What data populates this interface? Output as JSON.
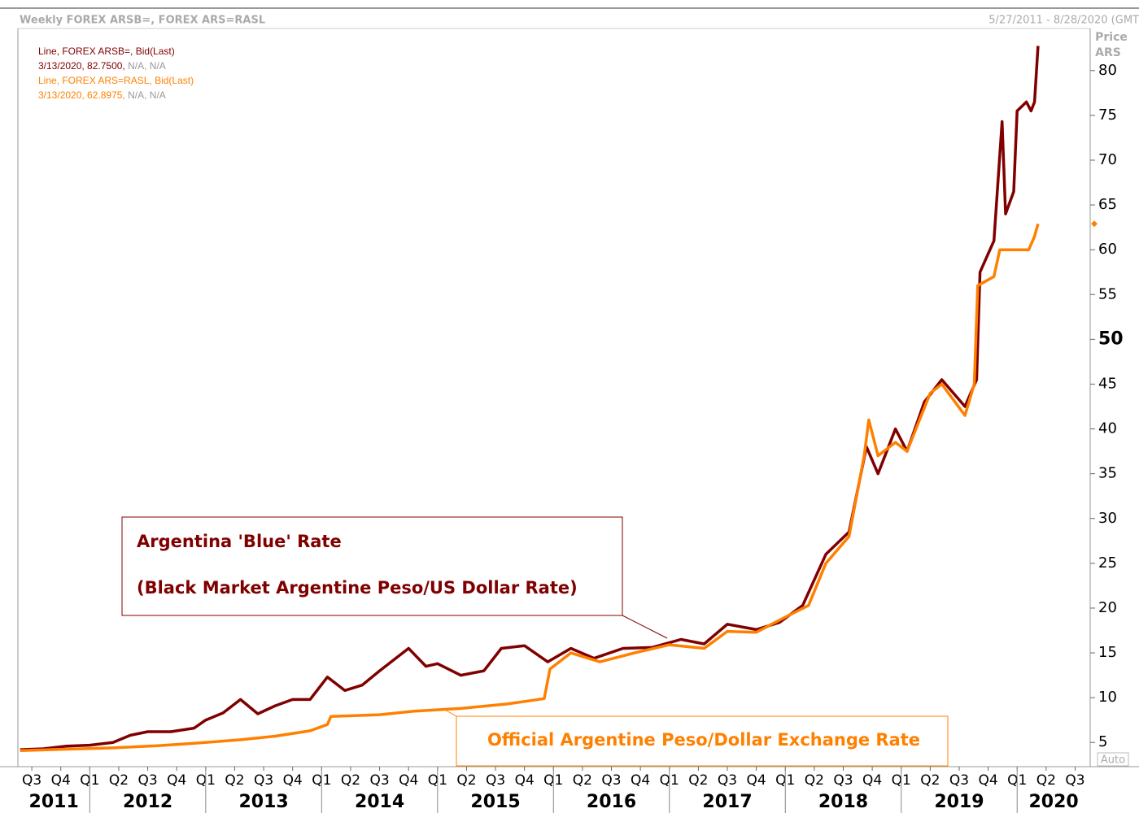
{
  "chart_data": {
    "type": "line",
    "header_left": "Weekly FOREX ARSB=, FOREX ARS=RASL",
    "header_right": "5/27/2011 - 8/28/2020 (GMT",
    "y_axis_label": [
      "Price",
      "ARS"
    ],
    "auto_button": "Auto",
    "annotations": [
      {
        "lines": [
          "Argentina 'Blue' Rate",
          "(Black Market Argentine Peso/US Dollar Rate)"
        ],
        "color": "#800000"
      },
      {
        "lines": [
          "Official Argentine Peso/Dollar Exchange Rate"
        ],
        "color": "#ff8000"
      }
    ],
    "series": [
      {
        "name": "Line, FOREX ARSB=, Bid(Last)",
        "legend_value": "3/13/2020, 82.7500,",
        "legend_na": "N/A, N/A",
        "color": "#800000",
        "x": [
          2011.4,
          2011.6,
          2011.8,
          2012.0,
          2012.2,
          2012.35,
          2012.5,
          2012.7,
          2012.9,
          2013.0,
          2013.15,
          2013.3,
          2013.45,
          2013.6,
          2013.75,
          2013.9,
          2014.05,
          2014.2,
          2014.35,
          2014.5,
          2014.75,
          2014.9,
          2015.0,
          2015.2,
          2015.4,
          2015.55,
          2015.75,
          2015.95,
          2016.15,
          2016.35,
          2016.6,
          2016.85,
          2017.1,
          2017.3,
          2017.5,
          2017.75,
          2017.95,
          2018.15,
          2018.35,
          2018.55,
          2018.7,
          2018.8,
          2018.95,
          2019.05,
          2019.2,
          2019.35,
          2019.55,
          2019.65,
          2019.68,
          2019.8,
          2019.87,
          2019.9,
          2019.97,
          2020.0,
          2020.08,
          2020.12,
          2020.15,
          2020.18
        ],
        "values": [
          4.2,
          4.3,
          4.6,
          4.7,
          5.0,
          5.8,
          6.2,
          6.2,
          6.6,
          7.5,
          8.3,
          9.8,
          8.2,
          9.1,
          9.8,
          9.8,
          12.3,
          10.8,
          11.4,
          13.0,
          15.5,
          13.5,
          13.8,
          12.5,
          13.0,
          15.5,
          15.8,
          14.0,
          15.5,
          14.4,
          15.5,
          15.6,
          16.5,
          16.0,
          18.2,
          17.6,
          18.4,
          20.3,
          26.0,
          28.5,
          38.0,
          35.0,
          40.0,
          37.5,
          43.0,
          45.5,
          42.5,
          45.5,
          57.5,
          61.0,
          74.3,
          64.0,
          66.5,
          75.5,
          76.5,
          75.5,
          76.5,
          82.75
        ]
      },
      {
        "name": "Line, FOREX ARS=RASL, Bid(Last)",
        "legend_value": "3/13/2020, 62.8975,",
        "legend_na": "N/A, N/A",
        "color": "#ff8000",
        "x": [
          2011.4,
          2011.8,
          2012.2,
          2012.6,
          2012.9,
          2013.3,
          2013.6,
          2013.9,
          2014.05,
          2014.08,
          2014.5,
          2014.8,
          2015.2,
          2015.6,
          2015.92,
          2015.97,
          2016.15,
          2016.4,
          2016.7,
          2017.0,
          2017.3,
          2017.5,
          2017.75,
          2018.0,
          2018.2,
          2018.35,
          2018.55,
          2018.68,
          2018.72,
          2018.8,
          2018.95,
          2019.05,
          2019.25,
          2019.35,
          2019.55,
          2019.63,
          2019.66,
          2019.8,
          2019.85,
          2019.95,
          2020.1,
          2020.15,
          2020.18
        ],
        "values": [
          4.1,
          4.25,
          4.4,
          4.65,
          4.9,
          5.3,
          5.7,
          6.3,
          7.0,
          7.9,
          8.1,
          8.5,
          8.8,
          9.3,
          9.9,
          13.2,
          15.0,
          14.0,
          15.0,
          15.9,
          15.5,
          17.4,
          17.3,
          19.0,
          20.3,
          25.0,
          28.0,
          37.0,
          41.0,
          37.0,
          38.5,
          37.5,
          44.0,
          45.0,
          41.5,
          45.0,
          56.0,
          57.0,
          60.0,
          60.0,
          60.0,
          61.5,
          62.8975
        ]
      }
    ],
    "xlim": [
      2011.38,
      2020.63
    ],
    "xticks": [
      {
        "value": 2011.5,
        "label": "Q3"
      },
      {
        "value": 2011.75,
        "label": "Q4"
      },
      {
        "value": 2012.0,
        "label": "Q1"
      },
      {
        "value": 2012.25,
        "label": "Q2"
      },
      {
        "value": 2012.5,
        "label": "Q3"
      },
      {
        "value": 2012.75,
        "label": "Q4"
      },
      {
        "value": 2013.0,
        "label": "Q1"
      },
      {
        "value": 2013.25,
        "label": "Q2"
      },
      {
        "value": 2013.5,
        "label": "Q3"
      },
      {
        "value": 2013.75,
        "label": "Q4"
      },
      {
        "value": 2014.0,
        "label": "Q1"
      },
      {
        "value": 2014.25,
        "label": "Q2"
      },
      {
        "value": 2014.5,
        "label": "Q3"
      },
      {
        "value": 2014.75,
        "label": "Q4"
      },
      {
        "value": 2015.0,
        "label": "Q1"
      },
      {
        "value": 2015.25,
        "label": "Q2"
      },
      {
        "value": 2015.5,
        "label": "Q3"
      },
      {
        "value": 2015.75,
        "label": "Q4"
      },
      {
        "value": 2016.0,
        "label": "Q1"
      },
      {
        "value": 2016.25,
        "label": "Q2"
      },
      {
        "value": 2016.5,
        "label": "Q3"
      },
      {
        "value": 2016.75,
        "label": "Q4"
      },
      {
        "value": 2017.0,
        "label": "Q1"
      },
      {
        "value": 2017.25,
        "label": "Q2"
      },
      {
        "value": 2017.5,
        "label": "Q3"
      },
      {
        "value": 2017.75,
        "label": "Q4"
      },
      {
        "value": 2018.0,
        "label": "Q1"
      },
      {
        "value": 2018.25,
        "label": "Q2"
      },
      {
        "value": 2018.5,
        "label": "Q3"
      },
      {
        "value": 2018.75,
        "label": "Q4"
      },
      {
        "value": 2019.0,
        "label": "Q1"
      },
      {
        "value": 2019.25,
        "label": "Q2"
      },
      {
        "value": 2019.5,
        "label": "Q3"
      },
      {
        "value": 2019.75,
        "label": "Q4"
      },
      {
        "value": 2020.0,
        "label": "Q1"
      },
      {
        "value": 2020.25,
        "label": "Q2"
      },
      {
        "value": 2020.5,
        "label": "Q3"
      }
    ],
    "year_ticks": [
      2011,
      2012,
      2013,
      2014,
      2015,
      2016,
      2017,
      2018,
      2019,
      2020
    ],
    "ylim": [
      2.3,
      84.7
    ],
    "yticks": [
      5,
      10,
      15,
      20,
      25,
      30,
      35,
      40,
      45,
      50,
      55,
      60,
      65,
      70,
      75,
      80
    ],
    "bold_ytick": 50,
    "grid": false
  }
}
